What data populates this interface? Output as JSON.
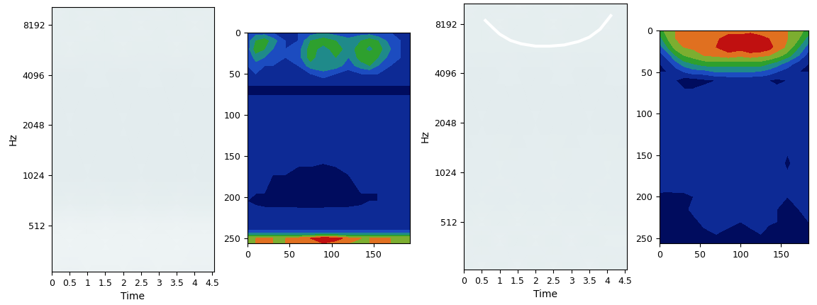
{
  "chart_data": [
    {
      "type": "spectrogram",
      "xlabel": "Time",
      "ylabel": "Hz",
      "log": "y",
      "xlim": [
        0,
        4.55
      ],
      "ylim": [
        270,
        10450
      ],
      "xticks": [
        0,
        0.5,
        1,
        1.5,
        2,
        2.5,
        3,
        3.5,
        4,
        4.5
      ],
      "yticks": [
        512,
        1024,
        2048,
        4096,
        8192
      ],
      "x": [
        0,
        0.5,
        1,
        1.5,
        2,
        2.5,
        3,
        3.5,
        4,
        4.55
      ],
      "y": [
        270,
        400,
        512,
        700,
        1024,
        2048,
        4096,
        6000,
        8192,
        10450
      ],
      "zlim": [
        0,
        1
      ],
      "values": [
        [
          0.86,
          0.84,
          0.86,
          0.85,
          0.86,
          0.84,
          0.86,
          0.85,
          0.84,
          0.85
        ],
        [
          0.86,
          0.87,
          0.86,
          0.87,
          0.86,
          0.87,
          0.86,
          0.87,
          0.86,
          0.86
        ],
        [
          0.85,
          0.86,
          0.85,
          0.86,
          0.85,
          0.86,
          0.85,
          0.86,
          0.85,
          0.85
        ],
        [
          0.8,
          0.81,
          0.8,
          0.81,
          0.8,
          0.81,
          0.8,
          0.81,
          0.8,
          0.8
        ],
        [
          0.78,
          0.78,
          0.79,
          0.78,
          0.78,
          0.79,
          0.78,
          0.78,
          0.79,
          0.78
        ],
        [
          0.78,
          0.79,
          0.78,
          0.78,
          0.79,
          0.78,
          0.78,
          0.79,
          0.78,
          0.78
        ],
        [
          0.79,
          0.78,
          0.79,
          0.79,
          0.78,
          0.79,
          0.79,
          0.78,
          0.79,
          0.79
        ],
        [
          0.8,
          0.81,
          0.8,
          0.8,
          0.81,
          0.8,
          0.8,
          0.81,
          0.8,
          0.8
        ],
        [
          0.8,
          0.8,
          0.81,
          0.8,
          0.8,
          0.81,
          0.8,
          0.8,
          0.81,
          0.8
        ],
        [
          0.81,
          0.8,
          0.8,
          0.81,
          0.8,
          0.8,
          0.81,
          0.8,
          0.8,
          0.81
        ]
      ]
    },
    {
      "type": "heatmap",
      "xlim": [
        0,
        193
      ],
      "ylim": [
        256,
        0
      ],
      "xticks": [
        0,
        50,
        100,
        150
      ],
      "yticks": [
        0,
        50,
        100,
        150,
        200,
        250
      ],
      "levels": [
        0,
        0.1,
        0.2,
        0.3,
        0.4,
        0.5,
        0.6,
        0.7,
        0.8,
        1.0
      ],
      "colors": [
        "#000033",
        "#000c5e",
        "#0d2a95",
        "#1c4cc0",
        "#1f8a8a",
        "#2ea02e",
        "#7cae30",
        "#e07020",
        "#c01010"
      ],
      "x": [
        0,
        10,
        20,
        30,
        45,
        60,
        75,
        90,
        105,
        120,
        135,
        145,
        155,
        170,
        182,
        193
      ],
      "y": [
        0,
        10,
        20,
        30,
        40,
        50,
        60,
        68,
        80,
        150,
        195,
        205,
        215,
        238,
        245,
        250,
        256
      ],
      "values": [
        [
          0.3,
          0.35,
          0.35,
          0.3,
          0.3,
          0.3,
          0.35,
          0.4,
          0.35,
          0.3,
          0.35,
          0.35,
          0.3,
          0.3,
          0.3,
          0.3
        ],
        [
          0.35,
          0.5,
          0.55,
          0.45,
          0.3,
          0.3,
          0.5,
          0.55,
          0.5,
          0.45,
          0.5,
          0.55,
          0.5,
          0.35,
          0.3,
          0.3
        ],
        [
          0.35,
          0.55,
          0.5,
          0.4,
          0.3,
          0.35,
          0.55,
          0.45,
          0.55,
          0.45,
          0.55,
          0.45,
          0.55,
          0.4,
          0.3,
          0.3
        ],
        [
          0.3,
          0.45,
          0.4,
          0.35,
          0.3,
          0.35,
          0.55,
          0.4,
          0.5,
          0.4,
          0.55,
          0.6,
          0.5,
          0.35,
          0.3,
          0.3
        ],
        [
          0.3,
          0.35,
          0.3,
          0.3,
          0.3,
          0.3,
          0.45,
          0.5,
          0.45,
          0.35,
          0.45,
          0.5,
          0.4,
          0.3,
          0.3,
          0.3
        ],
        [
          0.25,
          0.3,
          0.3,
          0.25,
          0.25,
          0.25,
          0.3,
          0.35,
          0.3,
          0.25,
          0.3,
          0.3,
          0.3,
          0.25,
          0.25,
          0.25
        ],
        [
          0.25,
          0.25,
          0.25,
          0.25,
          0.25,
          0.25,
          0.25,
          0.25,
          0.25,
          0.25,
          0.25,
          0.25,
          0.25,
          0.25,
          0.25,
          0.25
        ],
        [
          0.15,
          0.15,
          0.15,
          0.15,
          0.15,
          0.15,
          0.15,
          0.15,
          0.15,
          0.15,
          0.15,
          0.15,
          0.15,
          0.15,
          0.15,
          0.15
        ],
        [
          0.22,
          0.22,
          0.22,
          0.22,
          0.22,
          0.22,
          0.22,
          0.22,
          0.22,
          0.22,
          0.22,
          0.22,
          0.22,
          0.22,
          0.22,
          0.22
        ],
        [
          0.22,
          0.22,
          0.22,
          0.22,
          0.22,
          0.22,
          0.22,
          0.22,
          0.22,
          0.22,
          0.22,
          0.22,
          0.22,
          0.22,
          0.22,
          0.22
        ],
        [
          0.22,
          0.2,
          0.2,
          0.18,
          0.18,
          0.15,
          0.15,
          0.12,
          0.15,
          0.18,
          0.2,
          0.2,
          0.2,
          0.22,
          0.22,
          0.22
        ],
        [
          0.2,
          0.18,
          0.15,
          0.15,
          0.15,
          0.12,
          0.12,
          0.12,
          0.15,
          0.15,
          0.18,
          0.2,
          0.2,
          0.22,
          0.22,
          0.22
        ],
        [
          0.22,
          0.22,
          0.22,
          0.22,
          0.22,
          0.22,
          0.22,
          0.22,
          0.22,
          0.22,
          0.22,
          0.22,
          0.22,
          0.22,
          0.22,
          0.22
        ],
        [
          0.22,
          0.22,
          0.22,
          0.22,
          0.22,
          0.22,
          0.22,
          0.22,
          0.22,
          0.22,
          0.22,
          0.22,
          0.22,
          0.22,
          0.22,
          0.22
        ],
        [
          0.45,
          0.45,
          0.45,
          0.45,
          0.45,
          0.45,
          0.45,
          0.45,
          0.45,
          0.45,
          0.45,
          0.45,
          0.45,
          0.45,
          0.45,
          0.45
        ],
        [
          0.7,
          0.7,
          0.75,
          0.7,
          0.7,
          0.75,
          0.8,
          0.9,
          0.85,
          0.75,
          0.7,
          0.7,
          0.75,
          0.7,
          0.7,
          0.7
        ],
        [
          0.7,
          0.7,
          0.72,
          0.7,
          0.7,
          0.72,
          0.75,
          0.8,
          0.75,
          0.7,
          0.7,
          0.7,
          0.72,
          0.7,
          0.7,
          0.7
        ]
      ]
    },
    {
      "type": "spectrogram",
      "xlabel": "Time",
      "ylabel": "Hz",
      "log": "y",
      "xlim": [
        0,
        4.55
      ],
      "ylim": [
        262,
        10900
      ],
      "xticks": [
        0,
        0.5,
        1,
        1.5,
        2,
        2.5,
        3,
        3.5,
        4,
        4.5
      ],
      "yticks": [
        512,
        1024,
        2048,
        4096,
        8192
      ],
      "x": [
        0,
        0.5,
        1,
        1.5,
        2,
        2.5,
        3,
        3.5,
        4,
        4.55
      ],
      "y": [
        262,
        400,
        512,
        700,
        1024,
        2048,
        4096,
        6000,
        8192,
        10900
      ],
      "zlim": [
        0,
        1
      ],
      "values": [
        [
          0.8,
          0.81,
          0.8,
          0.82,
          0.8,
          0.81,
          0.8,
          0.82,
          0.8,
          0.8
        ],
        [
          0.81,
          0.8,
          0.82,
          0.8,
          0.81,
          0.8,
          0.82,
          0.8,
          0.81,
          0.81
        ],
        [
          0.8,
          0.81,
          0.8,
          0.81,
          0.8,
          0.81,
          0.8,
          0.81,
          0.8,
          0.8
        ],
        [
          0.79,
          0.8,
          0.79,
          0.8,
          0.79,
          0.8,
          0.79,
          0.8,
          0.79,
          0.79
        ],
        [
          0.79,
          0.79,
          0.8,
          0.79,
          0.79,
          0.8,
          0.79,
          0.79,
          0.8,
          0.79
        ],
        [
          0.78,
          0.79,
          0.78,
          0.78,
          0.79,
          0.78,
          0.78,
          0.79,
          0.78,
          0.78
        ],
        [
          0.79,
          0.78,
          0.79,
          0.79,
          0.78,
          0.79,
          0.79,
          0.78,
          0.79,
          0.79
        ],
        [
          0.8,
          0.8,
          0.8,
          0.8,
          0.8,
          0.8,
          0.8,
          0.8,
          0.8,
          0.8
        ],
        [
          0.8,
          0.8,
          0.81,
          0.8,
          0.8,
          0.81,
          0.8,
          0.8,
          0.81,
          0.8
        ],
        [
          0.81,
          0.8,
          0.8,
          0.81,
          0.8,
          0.8,
          0.81,
          0.8,
          0.8,
          0.81
        ]
      ],
      "series": [
        {
          "color": "#ffffff",
          "x": [
            0.6,
            0.8,
            1.0,
            1.3,
            1.6,
            2.0,
            2.4,
            2.8,
            3.2,
            3.5,
            3.8,
            4.1
          ],
          "values": [
            8600,
            7800,
            7100,
            6500,
            6200,
            6000,
            6000,
            6100,
            6400,
            6800,
            7600,
            9200
          ]
        }
      ]
    },
    {
      "type": "heatmap",
      "xlim": [
        0,
        184
      ],
      "ylim": [
        256,
        0
      ],
      "xticks": [
        0,
        50,
        100,
        150
      ],
      "yticks": [
        0,
        50,
        100,
        150,
        200,
        250
      ],
      "levels": [
        0,
        0.1,
        0.2,
        0.3,
        0.4,
        0.5,
        0.6,
        0.7,
        0.8,
        1.0
      ],
      "colors": [
        "#000033",
        "#000c5e",
        "#0d2a95",
        "#1c4cc0",
        "#1f8a8a",
        "#2ea02e",
        "#7cae30",
        "#e07020",
        "#c01010"
      ],
      "x": [
        0,
        10,
        20,
        30,
        42,
        55,
        70,
        85,
        100,
        112,
        125,
        135,
        145,
        158,
        172,
        184
      ],
      "y": [
        0,
        10,
        20,
        30,
        40,
        50,
        60,
        80,
        120,
        160,
        190,
        200,
        215,
        230,
        245,
        256
      ],
      "values": [
        [
          0.55,
          0.65,
          0.7,
          0.72,
          0.72,
          0.72,
          0.75,
          0.75,
          0.75,
          0.75,
          0.72,
          0.72,
          0.72,
          0.7,
          0.65,
          0.55
        ],
        [
          0.45,
          0.6,
          0.7,
          0.72,
          0.72,
          0.75,
          0.78,
          0.85,
          0.85,
          0.9,
          0.85,
          0.8,
          0.75,
          0.7,
          0.6,
          0.45
        ],
        [
          0.35,
          0.5,
          0.65,
          0.7,
          0.72,
          0.75,
          0.8,
          0.88,
          0.85,
          0.9,
          0.9,
          0.85,
          0.75,
          0.68,
          0.5,
          0.35
        ],
        [
          0.25,
          0.35,
          0.5,
          0.6,
          0.65,
          0.7,
          0.72,
          0.75,
          0.72,
          0.75,
          0.72,
          0.7,
          0.65,
          0.55,
          0.4,
          0.25
        ],
        [
          0.2,
          0.25,
          0.35,
          0.45,
          0.5,
          0.55,
          0.55,
          0.55,
          0.55,
          0.55,
          0.55,
          0.5,
          0.45,
          0.35,
          0.25,
          0.2
        ],
        [
          0.2,
          0.2,
          0.25,
          0.3,
          0.35,
          0.35,
          0.4,
          0.4,
          0.4,
          0.4,
          0.38,
          0.35,
          0.3,
          0.25,
          0.2,
          0.2
        ],
        [
          0.22,
          0.22,
          0.2,
          0.15,
          0.15,
          0.18,
          0.2,
          0.22,
          0.22,
          0.22,
          0.22,
          0.2,
          0.18,
          0.2,
          0.22,
          0.22
        ],
        [
          0.25,
          0.25,
          0.25,
          0.25,
          0.25,
          0.25,
          0.25,
          0.25,
          0.25,
          0.25,
          0.25,
          0.25,
          0.25,
          0.25,
          0.25,
          0.25
        ],
        [
          0.25,
          0.25,
          0.25,
          0.25,
          0.25,
          0.25,
          0.25,
          0.25,
          0.25,
          0.25,
          0.25,
          0.25,
          0.25,
          0.25,
          0.25,
          0.25
        ],
        [
          0.25,
          0.25,
          0.25,
          0.25,
          0.25,
          0.25,
          0.25,
          0.25,
          0.25,
          0.25,
          0.25,
          0.25,
          0.25,
          0.18,
          0.25,
          0.25
        ],
        [
          0.25,
          0.25,
          0.25,
          0.25,
          0.25,
          0.25,
          0.25,
          0.25,
          0.25,
          0.25,
          0.25,
          0.25,
          0.25,
          0.25,
          0.25,
          0.25
        ],
        [
          0.15,
          0.12,
          0.15,
          0.15,
          0.2,
          0.25,
          0.25,
          0.25,
          0.22,
          0.25,
          0.25,
          0.25,
          0.22,
          0.2,
          0.22,
          0.25
        ],
        [
          0.12,
          0.15,
          0.12,
          0.18,
          0.22,
          0.25,
          0.22,
          0.25,
          0.25,
          0.25,
          0.25,
          0.25,
          0.2,
          0.18,
          0.2,
          0.22
        ],
        [
          0.18,
          0.15,
          0.2,
          0.15,
          0.18,
          0.22,
          0.25,
          0.22,
          0.2,
          0.22,
          0.25,
          0.22,
          0.2,
          0.15,
          0.18,
          0.2
        ],
        [
          0.15,
          0.18,
          0.15,
          0.15,
          0.12,
          0.18,
          0.2,
          0.18,
          0.15,
          0.18,
          0.2,
          0.15,
          0.15,
          0.12,
          0.15,
          0.18
        ],
        [
          0.15,
          0.15,
          0.12,
          0.15,
          0.15,
          0.15,
          0.18,
          0.15,
          0.15,
          0.15,
          0.18,
          0.15,
          0.15,
          0.15,
          0.15,
          0.15
        ]
      ]
    }
  ]
}
